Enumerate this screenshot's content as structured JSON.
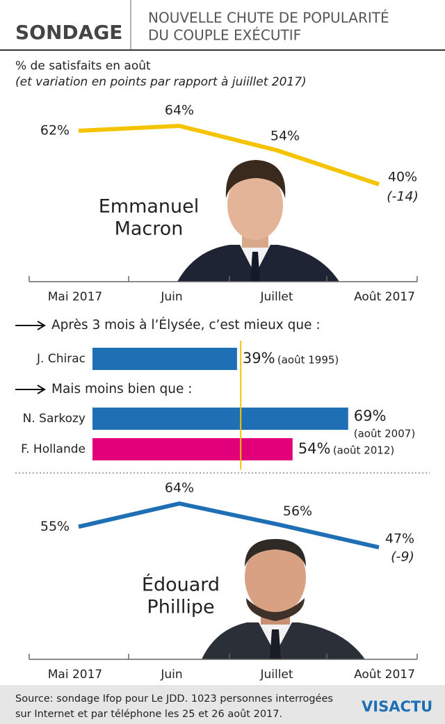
{
  "header": {
    "tag": "SONDAGE",
    "title_lines": [
      "NOUVELLE CHUTE DE POPULARITÉ",
      "DU COUPLE EXÉCUTIF"
    ]
  },
  "subtitle": "% de satisfaits en août",
  "subtitle_note": "(et variation en points par rapport à juiillet 2017)",
  "chart_data": [
    {
      "type": "line",
      "person": [
        "Emmanuel",
        "Macron"
      ],
      "color": "#f5c400",
      "categories": [
        "Mai 2017",
        "Juin",
        "Juillet",
        "Août 2017"
      ],
      "values": [
        62,
        64,
        54,
        40
      ],
      "value_labels": [
        "62%",
        "64%",
        "54%",
        "40%"
      ],
      "annotation": "(-14)"
    },
    {
      "type": "hbar",
      "sections": [
        "Après 3 mois à l’Élysée, c’est mieux que :",
        "Mais moins bien que :"
      ],
      "categories": [
        "J. Chirac",
        "N. Sarkozy",
        "F. Hollande"
      ],
      "values": [
        39,
        69,
        54
      ],
      "value_labels": [
        "39%",
        "69%",
        "54%"
      ],
      "dates": [
        "(août 1995)",
        "(août 2007)",
        "(août 2012)"
      ],
      "colors": [
        "#1f6fb5",
        "#1f6fb5",
        "#e2007a"
      ],
      "reference": 40,
      "reference_color": "#f5c400"
    },
    {
      "type": "line",
      "person": [
        "Édouard",
        "Phillipe"
      ],
      "color": "#1f6fb5",
      "categories": [
        "Mai 2017",
        "Juin",
        "Juillet",
        "Août 2017"
      ],
      "values": [
        55,
        64,
        56,
        47
      ],
      "value_labels": [
        "55%",
        "64%",
        "56%",
        "47%"
      ],
      "annotation": "(-9)"
    }
  ],
  "footer": {
    "source_lines": [
      "Source: sondage Ifop pour Le JDD. 1023 personnes interrogées",
      "sur Internet et par téléphone les 25 et 26 août 2017."
    ],
    "logo": "VISACTU"
  }
}
